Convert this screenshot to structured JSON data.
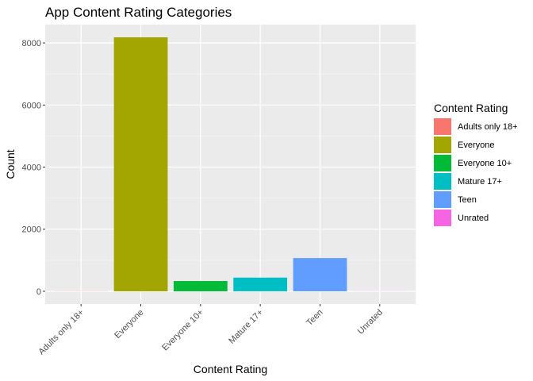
{
  "chart_data": {
    "type": "bar",
    "title": "App Content Rating Categories",
    "xlabel": "Content Rating",
    "ylabel": "Count",
    "categories": [
      "Adults only 18+",
      "Everyone",
      "Everyone 10+",
      "Mature 17+",
      "Teen",
      "Unrated"
    ],
    "values": [
      3,
      8180,
      330,
      440,
      1070,
      2
    ],
    "colors": [
      "#F8766D",
      "#A3A500",
      "#00BA38",
      "#00BFC4",
      "#619CFF",
      "#F564E3"
    ],
    "ylim": [
      -410,
      8590
    ],
    "yticks": [
      0,
      2000,
      4000,
      6000,
      8000
    ],
    "grid": true,
    "legend": {
      "title": "Content Rating",
      "position": "right",
      "entries": [
        "Adults only 18+",
        "Everyone",
        "Everyone 10+",
        "Mature 17+",
        "Teen",
        "Unrated"
      ]
    }
  }
}
